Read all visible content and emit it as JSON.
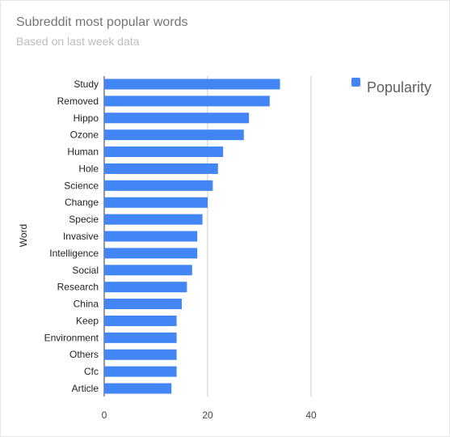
{
  "title": "Subreddit most popular words",
  "subtitle": "Based on last week data",
  "chart_data": {
    "type": "bar",
    "orientation": "horizontal",
    "title": "Subreddit most popular words",
    "subtitle": "Based on last week data",
    "ylabel": "Word",
    "xlabel": "",
    "categories": [
      "Study",
      "Removed",
      "Hippo",
      "Ozone",
      "Human",
      "Hole",
      "Science",
      "Change",
      "Specie",
      "Invasive",
      "Intelligence",
      "Social",
      "Research",
      "China",
      "Keep",
      "Environment",
      "Others",
      "Cfc",
      "Article"
    ],
    "series": [
      {
        "name": "Popularity",
        "values": [
          34,
          32,
          28,
          27,
          23,
          22,
          21,
          20,
          19,
          18,
          18,
          17,
          16,
          15,
          14,
          14,
          14,
          14,
          13
        ]
      }
    ],
    "xlim": [
      0,
      40
    ],
    "xticks": [
      0,
      20,
      40
    ],
    "grid": true,
    "legend": "top-right",
    "bar_color": "#4285f4"
  }
}
